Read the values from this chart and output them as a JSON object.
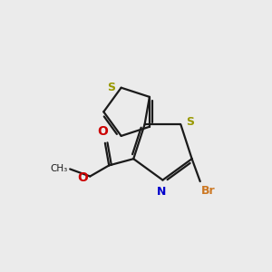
{
  "background_color": "#ebebeb",
  "bond_color": "#1a1a1a",
  "S_color": "#999900",
  "N_color": "#0000cc",
  "O_color": "#cc0000",
  "Br_color": "#cc7722",
  "figsize": [
    3.0,
    3.0
  ],
  "dpi": 100,
  "xlim": [
    0,
    10
  ],
  "ylim": [
    0,
    10
  ]
}
